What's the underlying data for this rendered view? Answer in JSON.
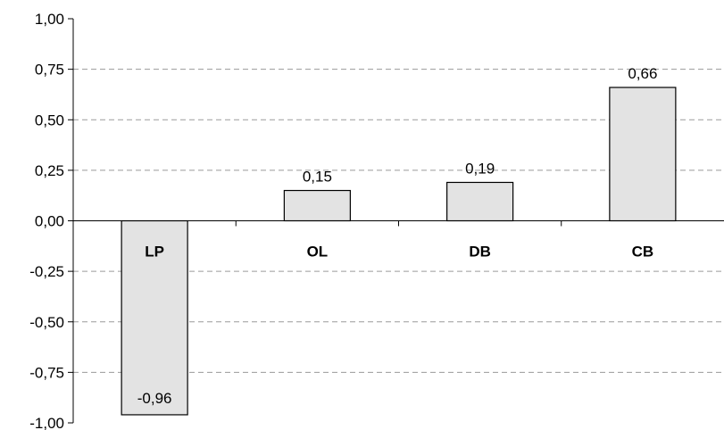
{
  "chart_data": {
    "type": "bar",
    "categories": [
      "LP",
      "OL",
      "DB",
      "CB"
    ],
    "values": [
      -0.96,
      0.15,
      0.19,
      0.66
    ],
    "value_labels": [
      "-0,96",
      "0,15",
      "0,19",
      "0,66"
    ],
    "ylim": [
      -1.0,
      1.0
    ],
    "yticks": [
      1.0,
      0.75,
      0.5,
      0.25,
      0.0,
      -0.25,
      -0.5,
      -0.75,
      -1.0
    ],
    "ytick_labels": [
      "1,00",
      "0,75",
      "0,50",
      "0,25",
      "0,00",
      "-0,25",
      "-0,50",
      "-0,75",
      "-1,00"
    ],
    "grid": "dashed-horizontal",
    "bar_color": "#e3e3e3",
    "bar_edge_color": "#000000",
    "grid_color": "#9a9a9a"
  }
}
